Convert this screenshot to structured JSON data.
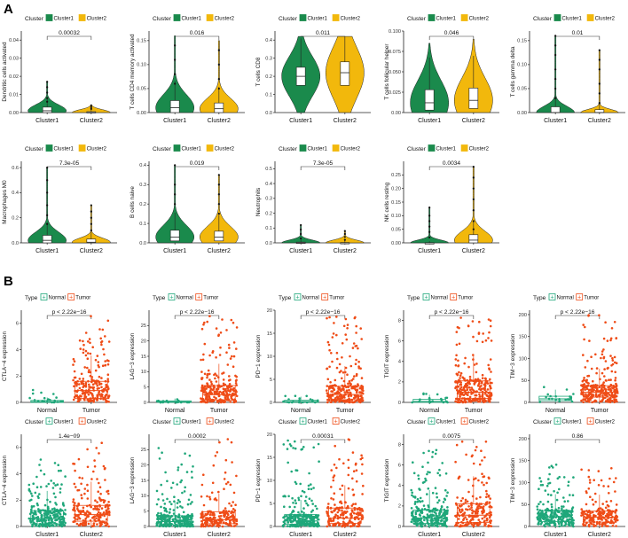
{
  "figure": {
    "panel_labels": [
      "A",
      "B"
    ],
    "colors": {
      "cluster1_violin": "#1a8a4c",
      "cluster2_violin": "#f2b80c",
      "normal_green": "#1fa77a",
      "tumor_orange": "#ef4c17",
      "axis": "#222222"
    }
  },
  "chart_data": [
    {
      "id": "a1",
      "type": "violin",
      "ylabel": "Dendritic cells activated",
      "legend_title": "Cluster",
      "legend": [
        "Cluster1",
        "Cluster2"
      ],
      "categories": [
        "Cluster1",
        "Cluster2"
      ],
      "yticks": [
        "0.00",
        "0.01",
        "0.02",
        "0.03",
        "0.04"
      ],
      "ylim": [
        0,
        0.045
      ],
      "pvalue": "0.00032",
      "median": [
        0.001,
        0.0
      ],
      "q1": [
        0.0,
        0.0
      ],
      "q3": [
        0.003,
        0.0005
      ],
      "max": [
        0.017,
        0.004
      ],
      "outliers": [
        [
          0.006,
          0.008,
          0.011,
          0.014,
          0.017
        ],
        [
          0.002,
          0.003,
          0.004
        ]
      ]
    },
    {
      "id": "a2",
      "type": "violin",
      "ylabel": "T cells CD4 memory activated",
      "legend_title": "Cluster",
      "legend": [
        "Cluster1",
        "Cluster2"
      ],
      "categories": [
        "Cluster1",
        "Cluster2"
      ],
      "yticks": [
        "0.00",
        "0.05",
        "0.10",
        "0.15"
      ],
      "ylim": [
        0,
        0.17
      ],
      "pvalue": "0.016",
      "median": [
        0.01,
        0.008
      ],
      "q1": [
        0.0,
        0.0
      ],
      "q3": [
        0.025,
        0.02
      ],
      "max": [
        0.16,
        0.15
      ],
      "outliers": [
        [
          0.06,
          0.08,
          0.11,
          0.14
        ],
        [
          0.05,
          0.07,
          0.1,
          0.13
        ]
      ]
    },
    {
      "id": "a3",
      "type": "violin",
      "ylabel": "T cells CD8",
      "legend_title": "Cluster",
      "legend": [
        "Cluster1",
        "Cluster2"
      ],
      "categories": [
        "Cluster1",
        "Cluster2"
      ],
      "yticks": [
        "0.0",
        "0.1",
        "0.2",
        "0.3",
        "0.4"
      ],
      "ylim": [
        0,
        0.45
      ],
      "pvalue": "0.011",
      "median": [
        0.2,
        0.22
      ],
      "q1": [
        0.15,
        0.15
      ],
      "q3": [
        0.25,
        0.28
      ],
      "max": [
        0.42,
        0.42
      ],
      "outliers": [
        [],
        []
      ]
    },
    {
      "id": "a4",
      "type": "violin",
      "ylabel": "T cells follicular helper",
      "legend_title": "Cluster",
      "legend": [
        "Cluster1",
        "Cluster2"
      ],
      "categories": [
        "Cluster1",
        "Cluster2"
      ],
      "yticks": [
        "0.00",
        "0.025",
        "0.050",
        "0.075",
        "0.100"
      ],
      "ylim": [
        0,
        0.1
      ],
      "pvalue": "0.046",
      "median": [
        0.012,
        0.015
      ],
      "q1": [
        0.003,
        0.005
      ],
      "q3": [
        0.028,
        0.03
      ],
      "max": [
        0.085,
        0.09
      ],
      "outliers": [
        [],
        []
      ]
    },
    {
      "id": "a5",
      "type": "violin",
      "ylabel": "T cells gamma delta",
      "legend_title": "Cluster",
      "legend": [
        "Cluster1",
        "Cluster2"
      ],
      "categories": [
        "Cluster1",
        "Cluster2"
      ],
      "yticks": [
        "0.00",
        "0.05",
        "0.10",
        "0.15"
      ],
      "ylim": [
        0,
        0.17
      ],
      "pvalue": "0.01",
      "median": [
        0.0,
        0.0
      ],
      "q1": [
        0.0,
        0.0
      ],
      "q3": [
        0.012,
        0.006
      ],
      "max": [
        0.16,
        0.13
      ],
      "outliers": [
        [
          0.03,
          0.05,
          0.07,
          0.09,
          0.12,
          0.14,
          0.16
        ],
        [
          0.02,
          0.04,
          0.06,
          0.09,
          0.11,
          0.13
        ]
      ]
    },
    {
      "id": "a6",
      "type": "violin",
      "ylabel": "Macrophages M0",
      "legend_title": "Cluster",
      "legend": [
        "Cluster1",
        "Cluster2"
      ],
      "categories": [
        "Cluster1",
        "Cluster2"
      ],
      "yticks": [
        "0.0",
        "0.2",
        "0.4",
        "0.6"
      ],
      "ylim": [
        0,
        0.65
      ],
      "pvalue": "7.3e-05",
      "median": [
        0.02,
        0.005
      ],
      "q1": [
        0.0,
        0.0
      ],
      "q3": [
        0.06,
        0.03
      ],
      "max": [
        0.6,
        0.3
      ],
      "outliers": [
        [
          0.15,
          0.22,
          0.3,
          0.4,
          0.5,
          0.6
        ],
        [
          0.1,
          0.15,
          0.2,
          0.25,
          0.3
        ]
      ]
    },
    {
      "id": "a7",
      "type": "violin",
      "ylabel": "B cells naive",
      "legend_title": "Cluster",
      "legend": [
        "Cluster1",
        "Cluster2"
      ],
      "categories": [
        "Cluster1",
        "Cluster2"
      ],
      "yticks": [
        "0.0",
        "0.1",
        "0.2",
        "0.3",
        "0.4"
      ],
      "ylim": [
        0,
        0.42
      ],
      "pvalue": "0.019",
      "median": [
        0.03,
        0.03
      ],
      "q1": [
        0.01,
        0.01
      ],
      "q3": [
        0.065,
        0.06
      ],
      "max": [
        0.4,
        0.35
      ],
      "outliers": [
        [
          0.2,
          0.25,
          0.3,
          0.4
        ],
        [
          0.15,
          0.2,
          0.25,
          0.3,
          0.35
        ]
      ]
    },
    {
      "id": "a8",
      "type": "violin",
      "ylabel": "Neutrophils",
      "legend_title": "Cluster",
      "legend": [
        "Cluster1",
        "Cluster2"
      ],
      "categories": [
        "Cluster1",
        "Cluster2"
      ],
      "yticks": [
        "0.0",
        "0.1",
        "0.2",
        "0.3",
        "0.4",
        "0.5"
      ],
      "ylim": [
        0,
        0.55
      ],
      "pvalue": "7.3e-05",
      "median": [
        0.0,
        0.0
      ],
      "q1": [
        0.0,
        0.0
      ],
      "q3": [
        0.005,
        0.002
      ],
      "max": [
        0.12,
        0.08
      ],
      "outliers": [
        [
          0.03,
          0.06,
          0.09,
          0.12
        ],
        [
          0.02,
          0.04,
          0.06,
          0.08
        ]
      ]
    },
    {
      "id": "a9",
      "type": "violin",
      "ylabel": "NK cells resting",
      "legend_title": "Cluster",
      "legend": [
        "Cluster1",
        "Cluster2"
      ],
      "categories": [
        "Cluster1",
        "Cluster2"
      ],
      "yticks": [
        "0.00",
        "0.05",
        "0.10",
        "0.15",
        "0.20",
        "0.25"
      ],
      "ylim": [
        0,
        0.3
      ],
      "pvalue": "0.0034",
      "median": [
        0.0,
        0.01
      ],
      "q1": [
        0.0,
        0.0
      ],
      "q3": [
        0.0,
        0.03
      ],
      "max": [
        0.13,
        0.28
      ],
      "outliers": [
        [
          0.02,
          0.04,
          0.06,
          0.08,
          0.1,
          0.13
        ],
        [
          0.05,
          0.08,
          0.12,
          0.16,
          0.2,
          0.24,
          0.28
        ]
      ]
    },
    {
      "id": "b1",
      "type": "box-jitter",
      "ylabel": "CTLA−4 expression",
      "legend_title": "Type",
      "legend": [
        "Normal",
        "Tumor"
      ],
      "categories": [
        "Normal",
        "Tumor"
      ],
      "yticks": [
        "0",
        "2",
        "4",
        "6"
      ],
      "ylim": [
        0,
        7
      ],
      "pvalue": "p < 2.22e−16",
      "median": [
        0.05,
        0.9
      ],
      "q1": [
        0.0,
        0.3
      ],
      "q3": [
        0.15,
        1.6
      ],
      "max": [
        1.3,
        6.6
      ],
      "n": [
        20,
        220
      ]
    },
    {
      "id": "b2",
      "type": "box-jitter",
      "ylabel": "LAG−3 expression",
      "legend_title": "Type",
      "legend": [
        "Normal",
        "Tumor"
      ],
      "categories": [
        "Normal",
        "Tumor"
      ],
      "yticks": [
        "0",
        "5",
        "10",
        "15",
        "20",
        "25"
      ],
      "ylim": [
        0,
        30
      ],
      "pvalue": "p < 2.22e−16",
      "median": [
        0.2,
        2.5
      ],
      "q1": [
        0.0,
        0.8
      ],
      "q3": [
        0.5,
        5.5
      ],
      "max": [
        2.5,
        29
      ],
      "n": [
        20,
        260
      ]
    },
    {
      "id": "b3",
      "type": "box-jitter",
      "ylabel": "PD−1 expression",
      "legend_title": "Type",
      "legend": [
        "Normal",
        "Tumor"
      ],
      "categories": [
        "Normal",
        "Tumor"
      ],
      "yticks": [
        "0",
        "5",
        "10",
        "15",
        "20"
      ],
      "ylim": [
        0,
        20
      ],
      "pvalue": "p < 2.22e−16",
      "median": [
        0.2,
        1.7
      ],
      "q1": [
        0.0,
        0.6
      ],
      "q3": [
        0.5,
        3.5
      ],
      "max": [
        1.5,
        19
      ],
      "n": [
        20,
        260
      ]
    },
    {
      "id": "b4",
      "type": "box-jitter",
      "ylabel": "TIGIT expression",
      "legend_title": "Type",
      "legend": [
        "Normal",
        "Tumor"
      ],
      "categories": [
        "Normal",
        "Tumor"
      ],
      "yticks": [
        "0",
        "2",
        "4",
        "6",
        "8"
      ],
      "ylim": [
        0,
        9
      ],
      "pvalue": "p < 2.22e−16",
      "median": [
        0.1,
        1.0
      ],
      "q1": [
        0.0,
        0.4
      ],
      "q3": [
        0.3,
        2.1
      ],
      "max": [
        1.0,
        8.7
      ],
      "n": [
        20,
        260
      ]
    },
    {
      "id": "b5",
      "type": "box-jitter",
      "ylabel": "TIM−3 expression",
      "legend_title": "Type",
      "legend": [
        "Normal",
        "Tumor"
      ],
      "categories": [
        "Normal",
        "Tumor"
      ],
      "yticks": [
        "0",
        "50",
        "100",
        "150",
        "200"
      ],
      "ylim": [
        0,
        210
      ],
      "pvalue": "p < 2.22e−16",
      "median": [
        8,
        23
      ],
      "q1": [
        4,
        12
      ],
      "q3": [
        14,
        38
      ],
      "max": [
        35,
        200
      ],
      "n": [
        20,
        260
      ]
    },
    {
      "id": "b6",
      "type": "box-jitter",
      "ylabel": "CTLA−4 expression",
      "legend_title": "Cluster",
      "legend": [
        "Cluster1",
        "Cluster2"
      ],
      "categories": [
        "Cluster1",
        "Cluster2"
      ],
      "yticks": [
        "0",
        "2",
        "4",
        "6"
      ],
      "ylim": [
        0,
        7
      ],
      "pvalue": "1.4e−09",
      "median": [
        0.6,
        0.9
      ],
      "q1": [
        0.2,
        0.4
      ],
      "q3": [
        1.2,
        1.6
      ],
      "max": [
        5.2,
        6.6
      ],
      "n": [
        260,
        200
      ]
    },
    {
      "id": "b7",
      "type": "box-jitter",
      "ylabel": "LAG−3 expression",
      "legend_title": "Cluster",
      "legend": [
        "Cluster1",
        "Cluster2"
      ],
      "categories": [
        "Cluster1",
        "Cluster2"
      ],
      "yticks": [
        "0",
        "5",
        "10",
        "15",
        "20",
        "25"
      ],
      "ylim": [
        0,
        30
      ],
      "pvalue": "0.0002",
      "median": [
        1.6,
        2.2
      ],
      "q1": [
        0.6,
        0.9
      ],
      "q3": [
        3.5,
        4.8
      ],
      "max": [
        26,
        29
      ],
      "n": [
        260,
        200
      ]
    },
    {
      "id": "b8",
      "type": "box-jitter",
      "ylabel": "PD−1 expression",
      "legend_title": "Cluster",
      "legend": [
        "Cluster1",
        "Cluster2"
      ],
      "categories": [
        "Cluster1",
        "Cluster2"
      ],
      "yticks": [
        "0",
        "5",
        "10",
        "15",
        "20"
      ],
      "ylim": [
        0,
        20
      ],
      "pvalue": "0.00031",
      "median": [
        1.2,
        1.8
      ],
      "q1": [
        0.5,
        0.7
      ],
      "q3": [
        2.6,
        4.0
      ],
      "max": [
        19,
        19
      ],
      "n": [
        260,
        200
      ]
    },
    {
      "id": "b9",
      "type": "box-jitter",
      "ylabel": "TIGIT expression",
      "legend_title": "Cluster",
      "legend": [
        "Cluster1",
        "Cluster2"
      ],
      "categories": [
        "Cluster1",
        "Cluster2"
      ],
      "yticks": [
        "0",
        "2",
        "4",
        "6",
        "8"
      ],
      "ylim": [
        0,
        9
      ],
      "pvalue": "0.0075",
      "median": [
        0.8,
        1.1
      ],
      "q1": [
        0.3,
        0.4
      ],
      "q3": [
        1.6,
        2.2
      ],
      "max": [
        7.5,
        8.6
      ],
      "n": [
        260,
        200
      ]
    },
    {
      "id": "b10",
      "type": "box-jitter",
      "ylabel": "TIM−3 expression",
      "legend_title": "Cluster",
      "legend": [
        "Cluster1",
        "Cluster2"
      ],
      "categories": [
        "Cluster1",
        "Cluster2"
      ],
      "yticks": [
        "0",
        "50",
        "100",
        "150",
        "200"
      ],
      "ylim": [
        0,
        210
      ],
      "pvalue": "0.86",
      "median": [
        22,
        21
      ],
      "q1": [
        11,
        10
      ],
      "q3": [
        36,
        35
      ],
      "max": [
        150,
        135
      ],
      "n": [
        260,
        200
      ]
    }
  ]
}
